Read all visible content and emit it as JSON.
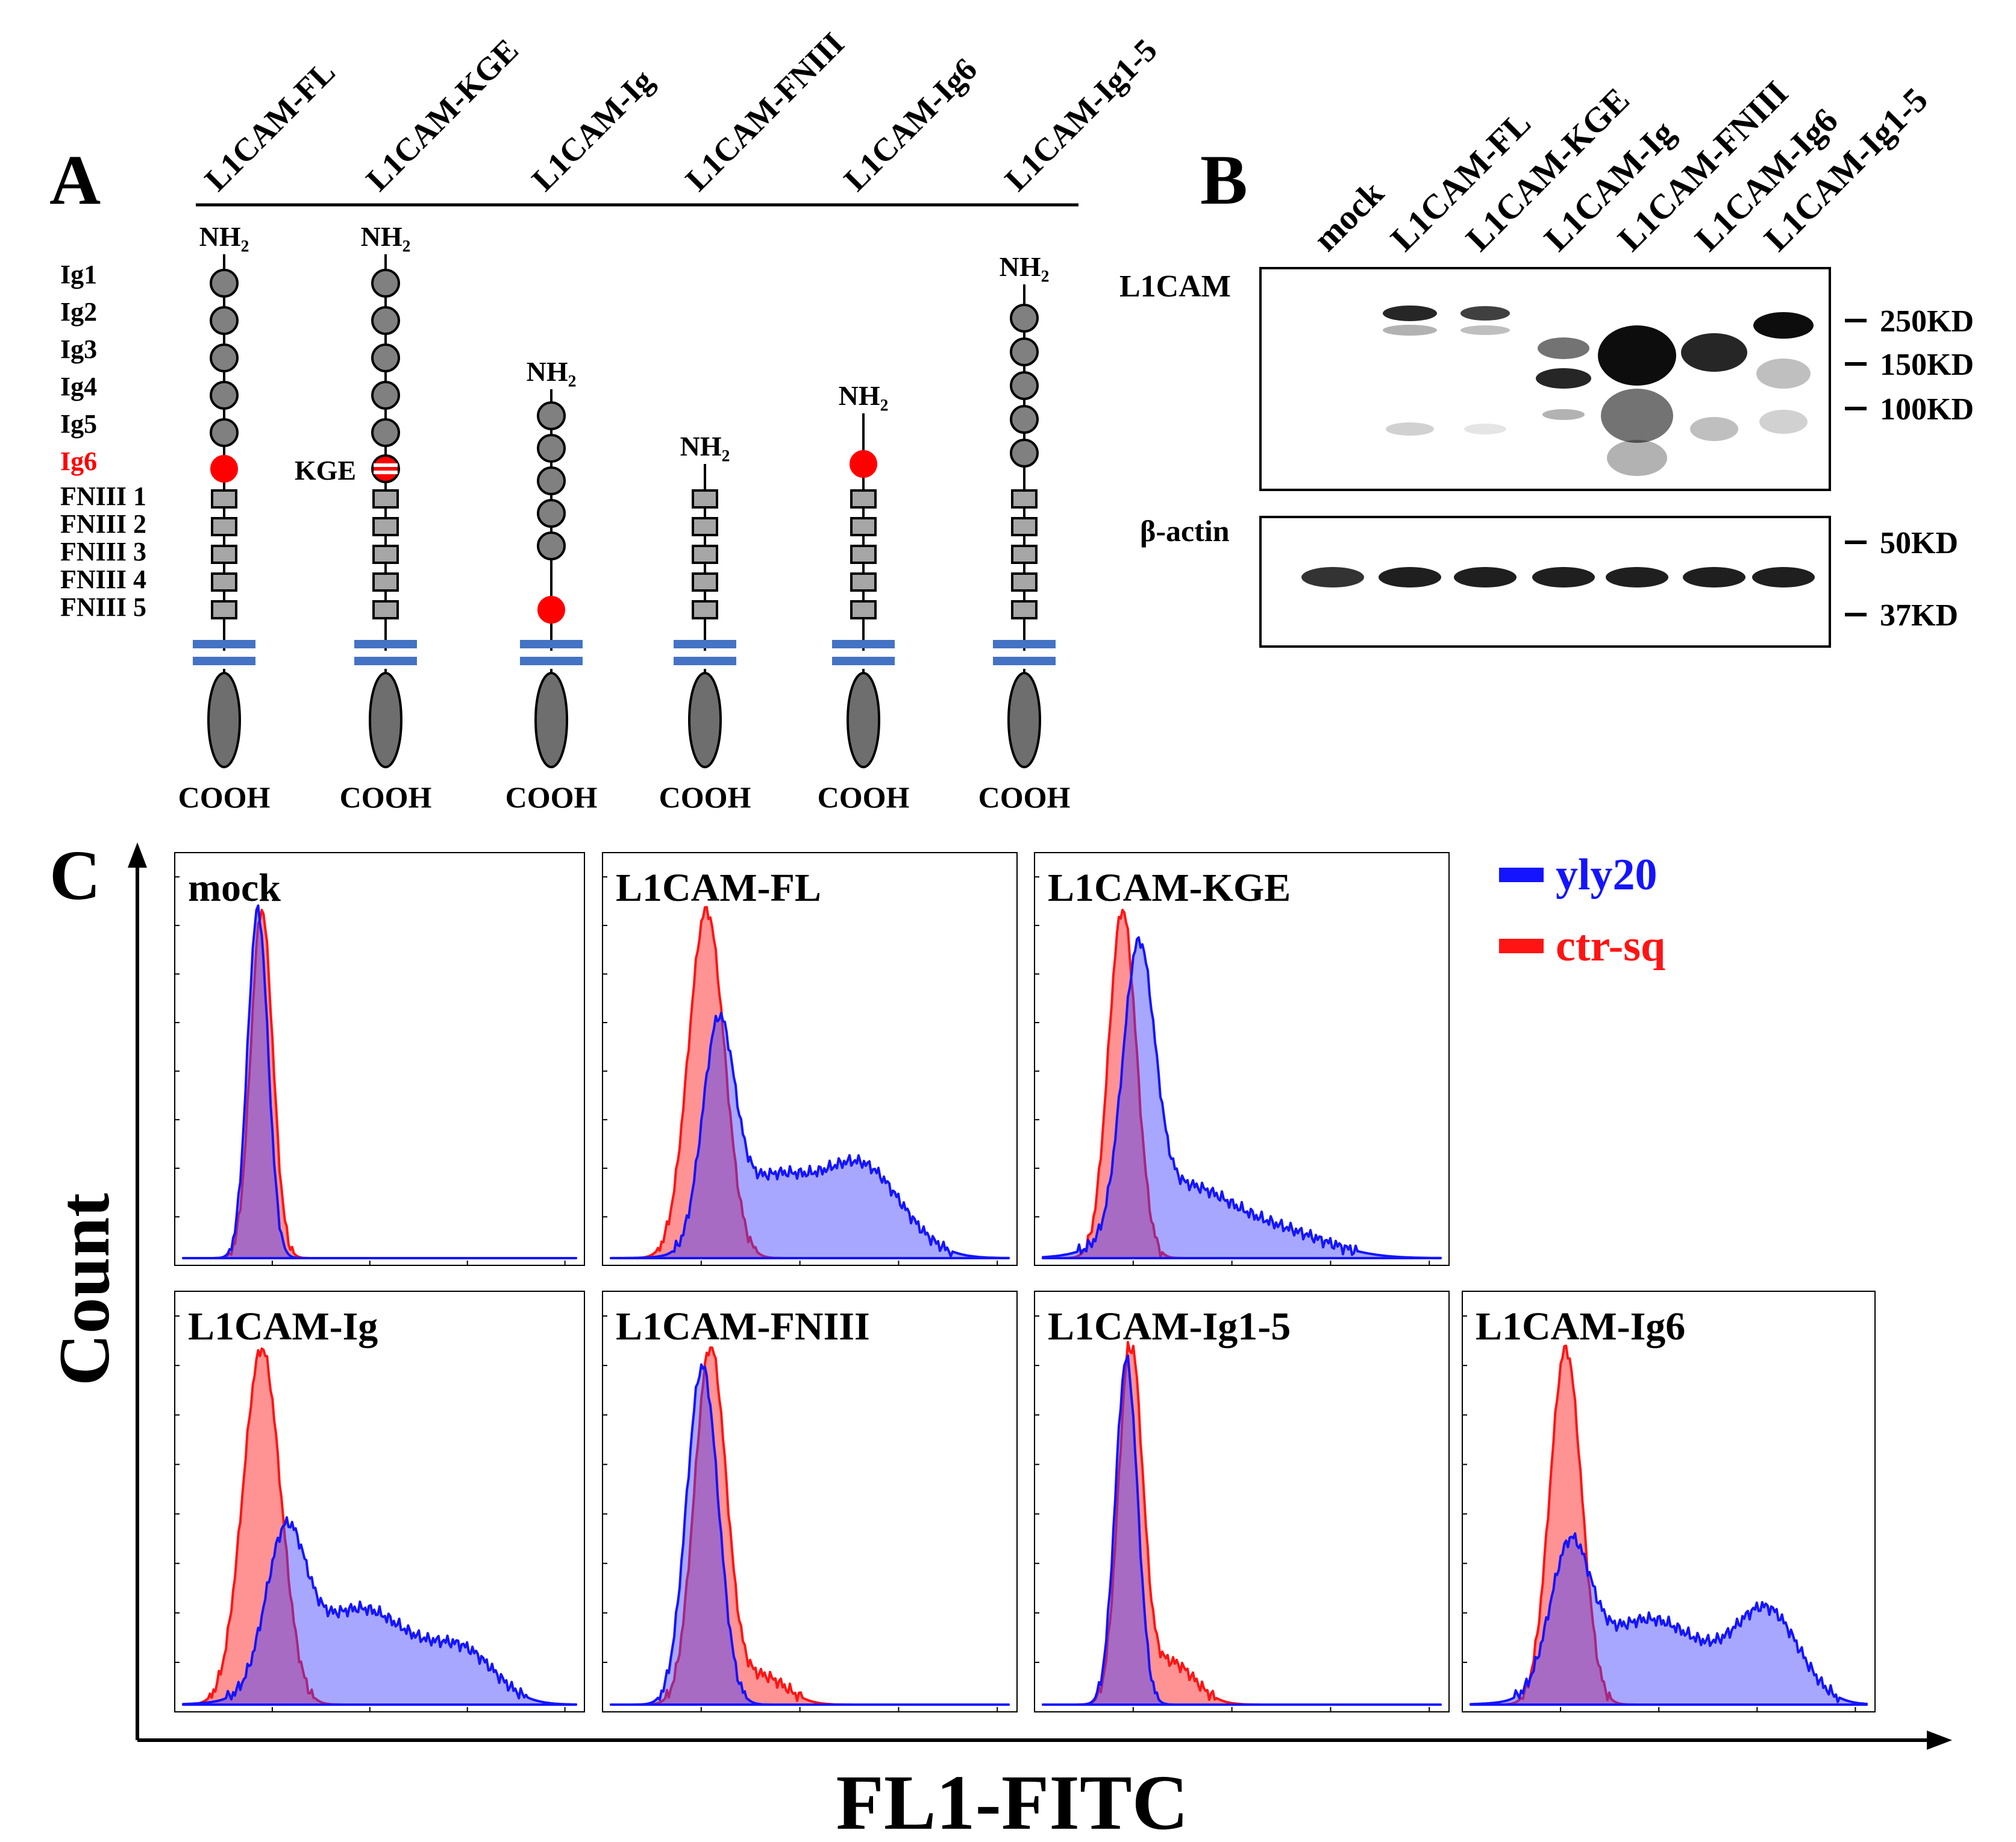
{
  "panel_a": {
    "letter": "A",
    "constructs": [
      {
        "name": "L1CAM-FL",
        "nterm": "NH₂",
        "cterm": "COOH"
      },
      {
        "name": "L1CAM-KGE",
        "nterm": "NH₂",
        "cterm": "COOH",
        "mutation": "KGE"
      },
      {
        "name": "L1CAM-Ig",
        "nterm": "NH₂",
        "cterm": "COOH"
      },
      {
        "name": "L1CAM-FNIII",
        "nterm": "NH₂",
        "cterm": "COOH"
      },
      {
        "name": "L1CAM-Ig6",
        "nterm": "NH₂",
        "cterm": "COOH"
      },
      {
        "name": "L1CAM-Ig1-5",
        "nterm": "NH₂",
        "cterm": "COOH"
      }
    ],
    "domains": [
      "Ig1",
      "Ig2",
      "Ig3",
      "Ig4",
      "Ig5",
      "Ig6",
      "FNIII 1",
      "FNIII 2",
      "FNIII 3",
      "FNIII 4",
      "FNIII 5"
    ],
    "highlight_color": "#ff0000",
    "membrane_color": "#4472c4"
  },
  "panel_b": {
    "letter": "B",
    "lanes": [
      "mock",
      "L1CAM-FL",
      "L1CAM-KGE",
      "L1CAM-Ig",
      "L1CAM-FNIII",
      "L1CAM-Ig6",
      "L1CAM-Ig1-5"
    ],
    "blot_labels": [
      "L1CAM",
      "β-actin"
    ],
    "markers_top": [
      "250KD",
      "150KD",
      "100KD"
    ],
    "markers_bottom": [
      "50KD",
      "37KD"
    ]
  },
  "panel_c": {
    "letter": "C",
    "y_label": "Count",
    "x_label": "FL1-FITC",
    "legend": [
      {
        "name": "yly20",
        "color": "#1414ff"
      },
      {
        "name": "ctr-sq",
        "color": "#ff1414"
      }
    ],
    "histograms": [
      {
        "title": "mock"
      },
      {
        "title": "L1CAM-FL"
      },
      {
        "title": "L1CAM-KGE"
      },
      {
        "title": "L1CAM-Ig"
      },
      {
        "title": "L1CAM-FNIII"
      },
      {
        "title": "L1CAM-Ig1-5"
      },
      {
        "title": "L1CAM-Ig6"
      }
    ]
  }
}
